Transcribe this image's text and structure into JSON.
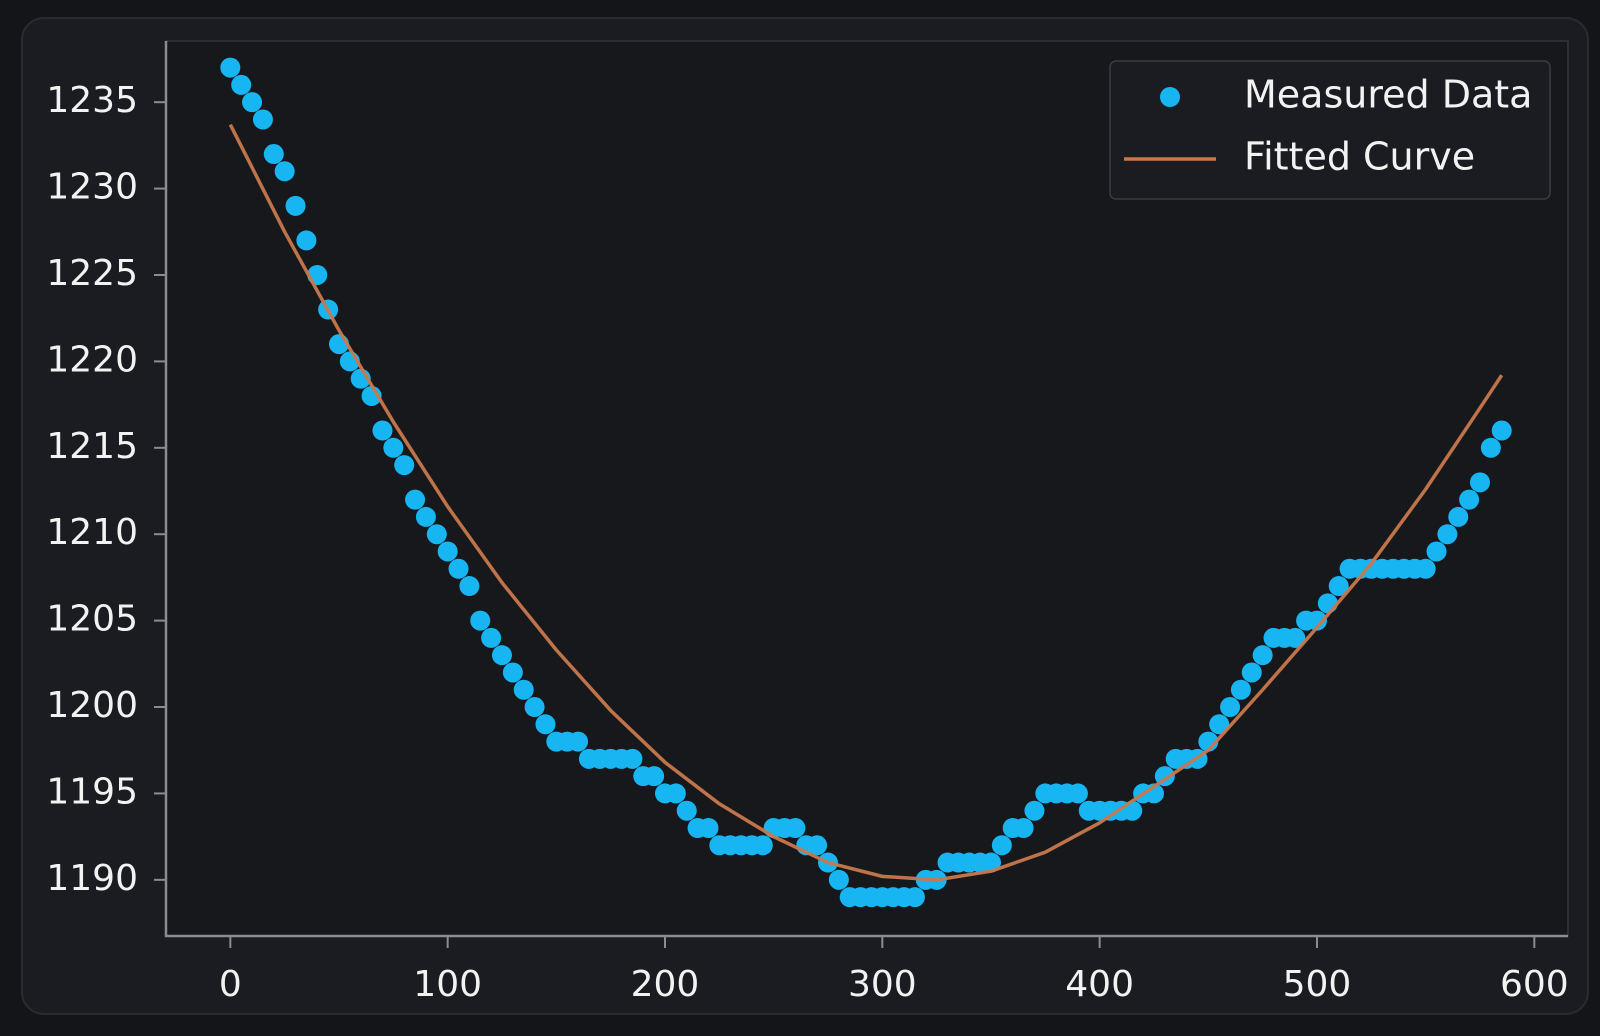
{
  "chart_data": {
    "type": "scatter",
    "xlim": [
      -29.6,
      615.5
    ],
    "ylim": [
      1186.75,
      1238.54
    ],
    "xticks": [
      0,
      100,
      200,
      300,
      400,
      500,
      600
    ],
    "yticks": [
      1190,
      1195,
      1200,
      1205,
      1210,
      1215,
      1220,
      1225,
      1230,
      1235
    ],
    "legend": "upper right",
    "series": [
      {
        "name": "Measured Data",
        "type": "scatter",
        "color": "#17b6f2",
        "x": [
          0,
          5,
          10,
          15,
          20,
          25,
          30,
          35,
          40,
          45,
          50,
          55,
          60,
          65,
          70,
          75,
          80,
          85,
          90,
          95,
          100,
          105,
          110,
          115,
          120,
          125,
          130,
          135,
          140,
          145,
          150,
          155,
          160,
          165,
          170,
          175,
          180,
          185,
          190,
          195,
          200,
          205,
          210,
          215,
          220,
          225,
          230,
          235,
          240,
          245,
          250,
          255,
          260,
          265,
          270,
          275,
          280,
          285,
          290,
          295,
          300,
          305,
          310,
          315,
          320,
          325,
          330,
          335,
          340,
          345,
          350,
          355,
          360,
          365,
          370,
          375,
          380,
          385,
          390,
          395,
          400,
          405,
          410,
          415,
          420,
          425,
          430,
          435,
          440,
          445,
          450,
          455,
          460,
          465,
          470,
          475,
          480,
          485,
          490,
          495,
          500,
          505,
          510,
          515,
          520,
          525,
          530,
          535,
          540,
          545,
          550,
          555,
          560,
          565,
          570,
          575,
          580,
          585
        ],
        "values": [
          1237,
          1236,
          1235,
          1234,
          1232,
          1231,
          1229,
          1227,
          1225,
          1223,
          1221,
          1220,
          1219,
          1218,
          1216,
          1215,
          1214,
          1212,
          1211,
          1210,
          1209,
          1208,
          1207,
          1205,
          1204,
          1203,
          1202,
          1201,
          1200,
          1199,
          1198,
          1198,
          1198,
          1197,
          1197,
          1197,
          1197,
          1197,
          1196,
          1196,
          1195,
          1195,
          1194,
          1193,
          1193,
          1192,
          1192,
          1192,
          1192,
          1192,
          1193,
          1193,
          1193,
          1192,
          1192,
          1191,
          1190,
          1189,
          1189,
          1189,
          1189,
          1189,
          1189,
          1189,
          1190,
          1190,
          1191,
          1191,
          1191,
          1191,
          1191,
          1192,
          1193,
          1193,
          1194,
          1195,
          1195,
          1195,
          1195,
          1194,
          1194,
          1194,
          1194,
          1194,
          1195,
          1195,
          1196,
          1197,
          1197,
          1197,
          1198,
          1199,
          1200,
          1201,
          1202,
          1203,
          1204,
          1204,
          1204,
          1205,
          1205,
          1206,
          1207,
          1208,
          1208,
          1208,
          1208,
          1208,
          1208,
          1208,
          1208,
          1209,
          1210,
          1211,
          1212,
          1213,
          1215,
          1216
        ]
      },
      {
        "name": "Fitted Curve",
        "type": "line",
        "color": "#c8784c",
        "x": [
          0,
          25,
          50,
          75,
          100,
          125,
          150,
          175,
          200,
          225,
          250,
          275,
          300,
          325,
          350,
          375,
          400,
          425,
          450,
          475,
          500,
          525,
          550,
          575,
          585
        ],
        "values": [
          1233.7,
          1227.5,
          1221.8,
          1216.5,
          1211.6,
          1207.2,
          1203.3,
          1199.8,
          1196.8,
          1194.4,
          1192.5,
          1191.0,
          1190.2,
          1190.0,
          1190.5,
          1191.6,
          1193.3,
          1195.4,
          1197.5,
          1201.0,
          1204.6,
          1208.3,
          1212.6,
          1217.3,
          1219.2
        ]
      }
    ]
  }
}
